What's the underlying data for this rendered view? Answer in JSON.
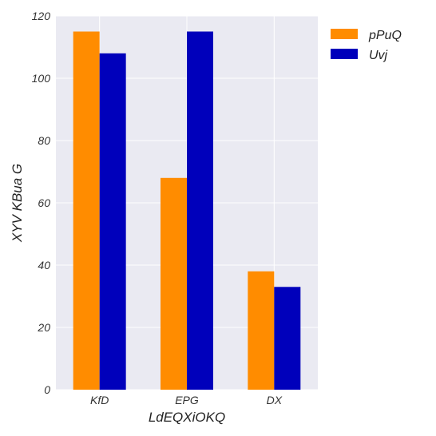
{
  "chart_data": {
    "type": "bar",
    "categories": [
      "KfD",
      "EPG",
      "DX"
    ],
    "series": [
      {
        "name": "pPuQ",
        "values": [
          115,
          68,
          38
        ],
        "color": "#ff8c00"
      },
      {
        "name": "Uvj",
        "values": [
          108,
          115,
          33
        ],
        "color": "#0000bb"
      }
    ],
    "xlabel": "LdEQXiOKQ",
    "ylabel": "XYV KBua G",
    "ylim": [
      0,
      120
    ],
    "yticks": [
      0,
      20,
      40,
      60,
      80,
      100,
      120
    ],
    "grid": true,
    "legend": "top-right, outside plot"
  }
}
